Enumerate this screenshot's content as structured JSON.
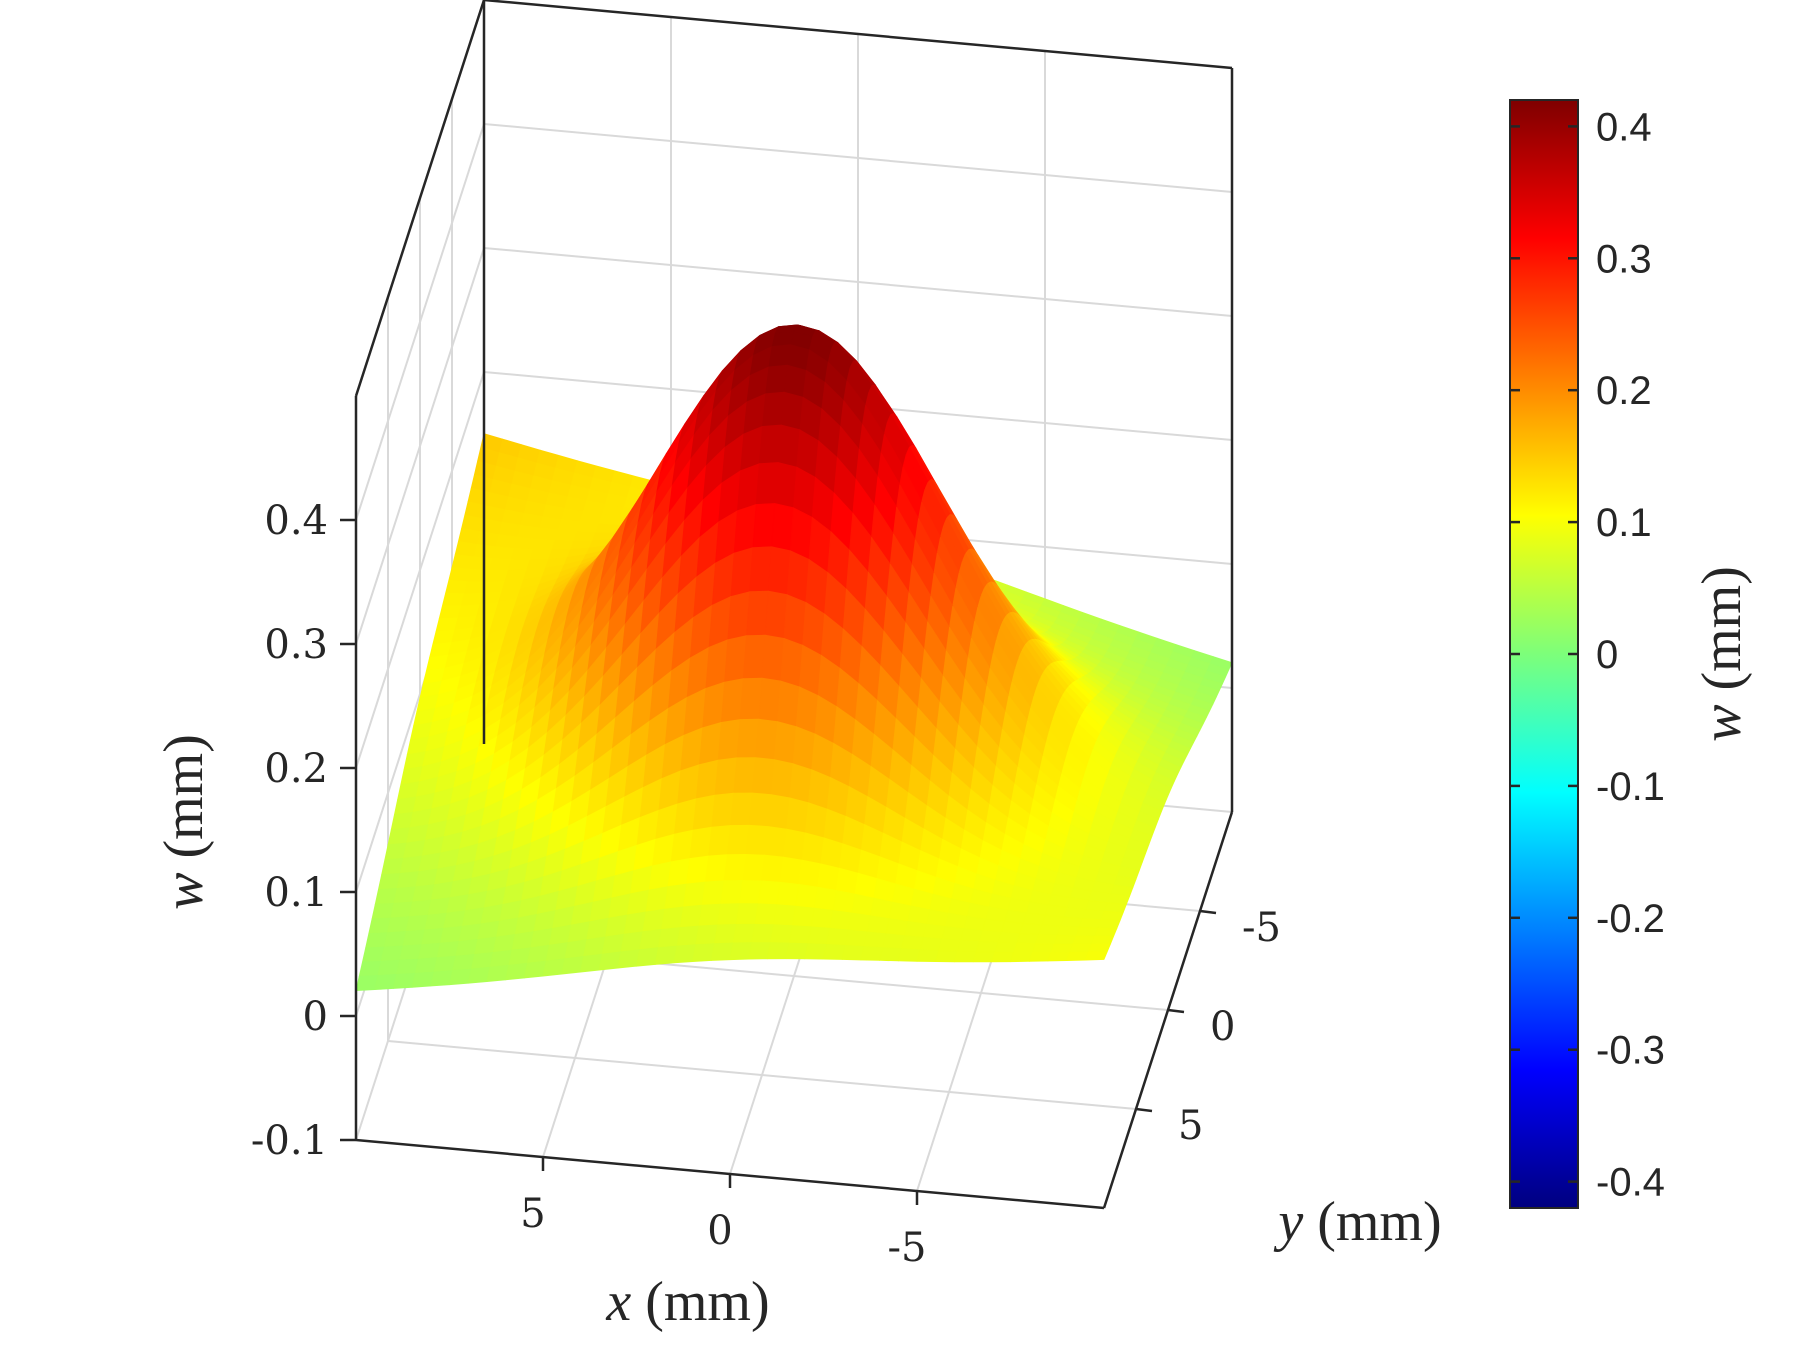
{
  "chart_data": {
    "type": "surface",
    "xlabel": {
      "var": "x",
      "unit": " (mm)"
    },
    "ylabel": {
      "var": "y",
      "unit": " (mm)"
    },
    "zlabel": {
      "var": "w",
      "unit": " (mm)"
    },
    "colorbar_label": {
      "var": "w",
      "unit": " (mm)"
    },
    "x_ticks": [
      5,
      0,
      -5
    ],
    "x_tick_labels": [
      "5",
      "0",
      "-5"
    ],
    "y_ticks": [
      -5,
      0,
      5
    ],
    "y_tick_labels": [
      "-5",
      "0",
      "5"
    ],
    "z_ticks": [
      -0.1,
      0,
      0.1,
      0.2,
      0.3,
      0.4
    ],
    "z_tick_labels": [
      "-0.1",
      "0",
      "0.1",
      "0.2",
      "0.3",
      "0.4"
    ],
    "colorbar_ticks": [
      -0.4,
      -0.3,
      -0.2,
      -0.1,
      0,
      0.1,
      0.2,
      0.3,
      0.4
    ],
    "colorbar_tick_labels": [
      "-0.4",
      "-0.3",
      "-0.2",
      "-0.1",
      "0",
      "0.1",
      "0.2",
      "0.3",
      "0.4"
    ],
    "colormap": "jet",
    "clim": [
      -0.42,
      0.42
    ],
    "xlim": [
      -10,
      10
    ],
    "ylim": [
      -10,
      10
    ],
    "zlim": [
      -0.1,
      0.5
    ],
    "grid": true,
    "peak": {
      "x": 0,
      "y": 0,
      "w": 0.42
    },
    "corner_values": {
      "x10_y10": 0.02,
      "xm10_y10": 0.1,
      "x10_ym10": 0.15,
      "xm10_ym10": 0.02
    }
  }
}
